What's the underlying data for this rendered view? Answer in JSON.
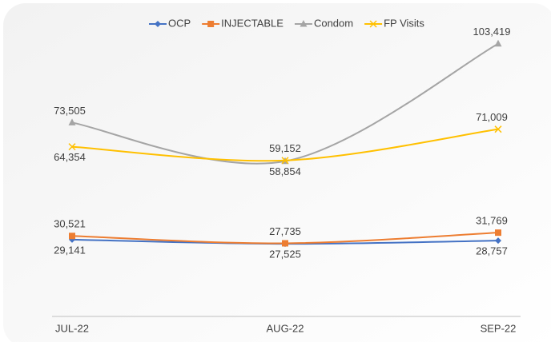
{
  "chart_data": {
    "type": "line",
    "categories": [
      "JUL-22",
      "AUG-22",
      "SEP-22"
    ],
    "series": [
      {
        "name": "OCP",
        "color": "#4472c4",
        "values": [
          29141,
          27525,
          28757
        ],
        "value_labels": [
          "29,141",
          "27,525",
          "28,757"
        ]
      },
      {
        "name": "INJECTABLE",
        "color": "#ed7d31",
        "values": [
          30521,
          27735,
          31769
        ],
        "value_labels": [
          "30,521",
          "27,735",
          "31,769"
        ]
      },
      {
        "name": "Condom",
        "color": "#a5a5a5",
        "values": [
          73505,
          58854,
          103419
        ],
        "value_labels": [
          "73,505",
          "58,854",
          "103,419"
        ]
      },
      {
        "name": "FP Visits",
        "color": "#ffc000",
        "values": [
          64354,
          59152,
          71009
        ],
        "value_labels": [
          "64,354",
          "59,152",
          "71,009"
        ]
      }
    ],
    "ylim": [
      0,
      120000
    ],
    "legend": "top",
    "smooth": true
  }
}
